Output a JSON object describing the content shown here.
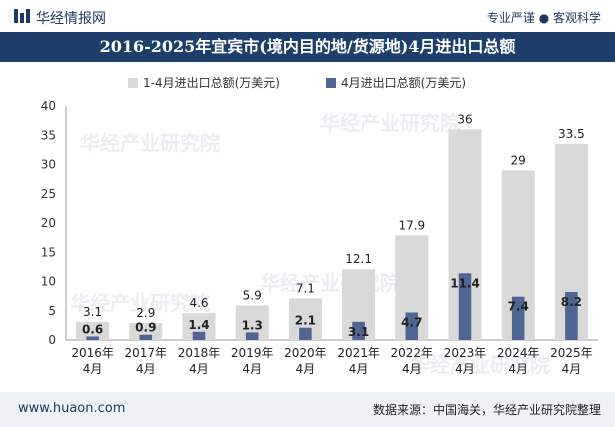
{
  "header": {
    "brand": "华经情报网",
    "slogan": "专业严谨 ● 客观科学"
  },
  "title": "2016-2025年宜宾市(境内目的地/货源地)4月进出口总额",
  "footer": {
    "site": "www.huaon.com",
    "source": "数据来源：中国海关，华经产业研究院整理"
  },
  "watermark": "华经产业研究院",
  "colors": {
    "series_total": "#d9d9d9",
    "series_month": "#4f6592",
    "titlebar": "#1f3f6b"
  },
  "chart_data": {
    "type": "bar",
    "categories": [
      "2016年\n4月",
      "2017年\n4月",
      "2018年\n4月",
      "2019年\n4月",
      "2020年\n4月",
      "2021年\n4月",
      "2022年\n4月",
      "2023年\n4月",
      "2024年\n4月",
      "2025年\n4月"
    ],
    "series": [
      {
        "name": "1-4月进出口总额(万美元)",
        "values": [
          3.1,
          2.9,
          4.6,
          5.9,
          7.1,
          12.1,
          17.9,
          36,
          29,
          33.5
        ]
      },
      {
        "name": "4月进出口总额(万美元)",
        "values": [
          0.6,
          0.9,
          1.4,
          1.3,
          2.1,
          3.1,
          4.7,
          11.4,
          7.4,
          8.2
        ]
      }
    ],
    "ylim": [
      0,
      40
    ],
    "yticks": [
      0,
      5,
      10,
      15,
      20,
      25,
      30,
      35,
      40
    ],
    "grid": false,
    "legend": "top-center"
  }
}
